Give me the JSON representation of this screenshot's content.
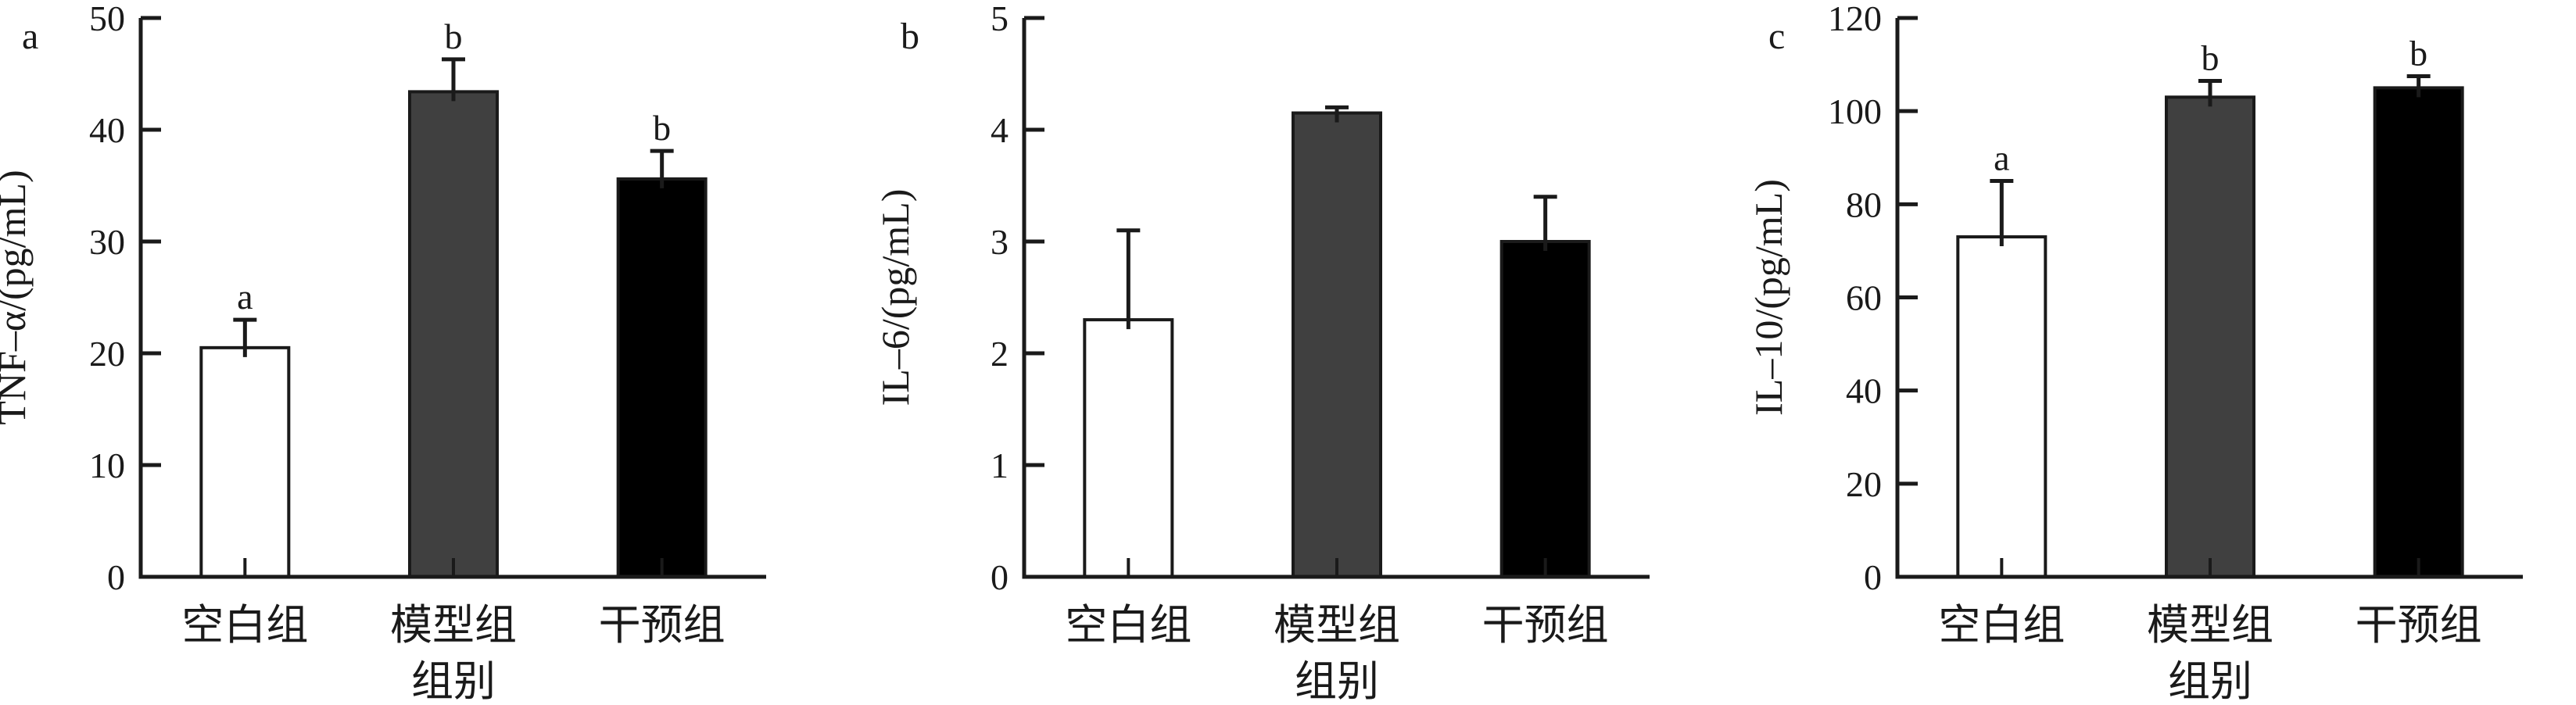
{
  "figure": {
    "background": "#ffffff",
    "ink_color": "#1a1a1a",
    "gray_fill": "#404040",
    "black_fill": "#000000",
    "white_fill": "#ffffff"
  },
  "chart_data": [
    {
      "type": "bar",
      "panel_label": "a",
      "ylabel": "TNF–α/(pg/mL)",
      "xlabel": "组别",
      "categories": [
        "空白组",
        "模型组",
        "干预组"
      ],
      "values": [
        20.5,
        43.4,
        35.6
      ],
      "errors": [
        2.5,
        2.9,
        2.5
      ],
      "sig_letters": [
        "a",
        "b",
        "b"
      ],
      "ylim": [
        0,
        50
      ],
      "ytick_step": 10,
      "ytick_labels": [
        "0",
        "10",
        "20",
        "30",
        "40",
        "50"
      ],
      "bar_colors": [
        "#ffffff",
        "#404040",
        "#000000"
      ],
      "grid": "off",
      "legend": "none"
    },
    {
      "type": "bar",
      "panel_label": "b",
      "ylabel": "IL–6/(pg/mL)",
      "xlabel": "组别",
      "categories": [
        "空白组",
        "模型组",
        "干预组"
      ],
      "values": [
        2.3,
        4.15,
        3.0
      ],
      "errors": [
        0.8,
        0.05,
        0.4
      ],
      "sig_letters": [
        "",
        "",
        ""
      ],
      "ylim": [
        0,
        5
      ],
      "ytick_step": 1,
      "ytick_labels": [
        "0",
        "1",
        "2",
        "3",
        "4",
        "5"
      ],
      "bar_colors": [
        "#ffffff",
        "#404040",
        "#000000"
      ],
      "grid": "off",
      "legend": "none"
    },
    {
      "type": "bar",
      "panel_label": "c",
      "ylabel": "IL–10/(pg/mL)",
      "xlabel": "组别",
      "categories": [
        "空白组",
        "模型组",
        "干预组"
      ],
      "values": [
        73,
        103,
        105
      ],
      "errors": [
        12,
        3.5,
        2.5
      ],
      "sig_letters": [
        "a",
        "b",
        "b"
      ],
      "ylim": [
        0,
        120
      ],
      "ytick_step": 20,
      "ytick_labels": [
        "0",
        "20",
        "40",
        "60",
        "80",
        "100",
        "120"
      ],
      "bar_colors": [
        "#ffffff",
        "#404040",
        "#000000"
      ],
      "grid": "off",
      "legend": "none"
    }
  ]
}
